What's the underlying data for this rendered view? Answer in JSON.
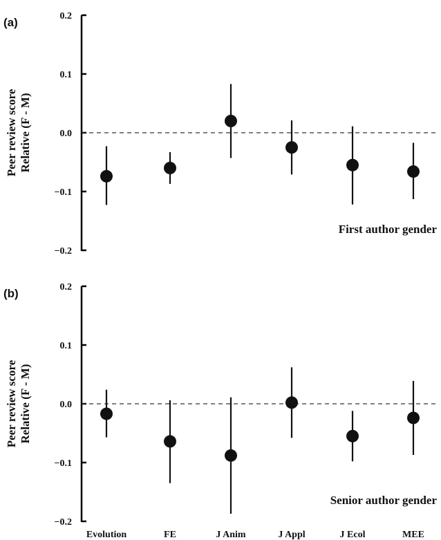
{
  "chart_data": [
    {
      "type": "scatter",
      "panel": "(a)",
      "annotation": "First author gender",
      "ylabel": [
        "Peer review score",
        "Relative (F - M)"
      ],
      "ylim": [
        -0.2,
        0.2
      ],
      "yticks": [
        "0.2",
        "0.1",
        "0.0",
        "−0.1",
        "−0.2"
      ],
      "categories": [
        "Evolution",
        "FE",
        "J Anim",
        "J Appl",
        "J Ecol",
        "MEE"
      ],
      "values": [
        -0.074,
        -0.06,
        0.02,
        -0.025,
        -0.055,
        -0.066
      ],
      "lower": [
        -0.123,
        -0.087,
        -0.043,
        -0.071,
        -0.122,
        -0.113
      ],
      "upper": [
        -0.023,
        -0.033,
        0.083,
        0.021,
        0.011,
        -0.017
      ],
      "reference_line": 0.0
    },
    {
      "type": "scatter",
      "panel": "(b)",
      "annotation": "Senior author gender",
      "ylabel": [
        "Peer review score",
        "Relative (F - M)"
      ],
      "ylim": [
        -0.2,
        0.2
      ],
      "yticks": [
        "0.2",
        "0.1",
        "0.0",
        "−0.1",
        "−0.2"
      ],
      "categories": [
        "Evolution",
        "FE",
        "J Anim",
        "J Appl",
        "J Ecol",
        "MEE"
      ],
      "values": [
        -0.017,
        -0.064,
        -0.088,
        0.002,
        -0.055,
        -0.024
      ],
      "lower": [
        -0.057,
        -0.135,
        -0.187,
        -0.058,
        -0.098,
        -0.087
      ],
      "upper": [
        0.024,
        0.006,
        0.011,
        0.062,
        -0.012,
        0.039
      ],
      "reference_line": 0.0
    }
  ]
}
